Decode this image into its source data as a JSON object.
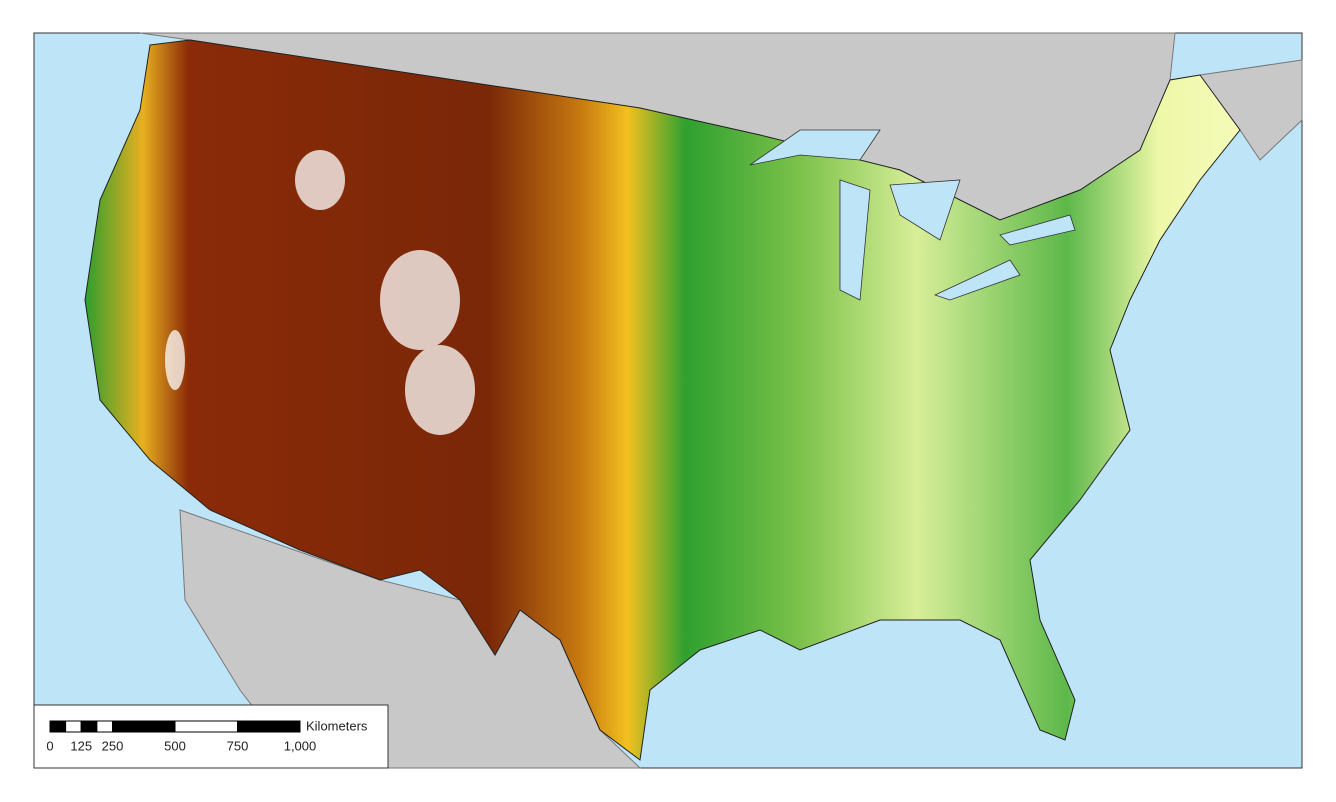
{
  "scale_bar": {
    "unit": "Kilometers",
    "ticks": [
      0,
      125,
      250,
      500,
      750,
      {
        "value": 1000,
        "label": "1,000"
      }
    ]
  }
}
